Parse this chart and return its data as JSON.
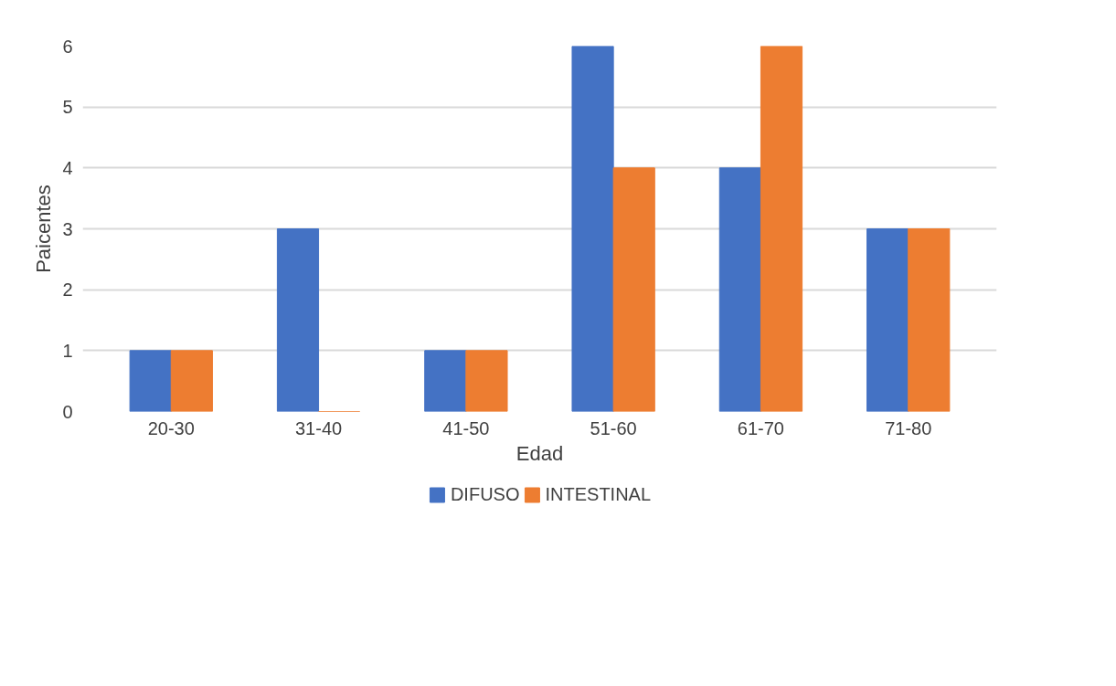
{
  "chart_data": {
    "type": "bar",
    "xlabel": "Edad",
    "ylabel": "Paicentes",
    "categories": [
      "20-30",
      "31-40",
      "41-50",
      "51-60",
      "61-70",
      "71-80"
    ],
    "series": [
      {
        "name": "DIFUSO",
        "color": "#4472c4",
        "values": [
          1,
          3,
          1,
          6,
          4,
          3
        ]
      },
      {
        "name": "INTESTINAL",
        "color": "#ed7d31",
        "values": [
          1,
          0,
          1,
          4,
          6,
          3
        ]
      }
    ],
    "ylim": [
      0,
      6
    ],
    "yticks": [
      0,
      1,
      2,
      3,
      4,
      5,
      6
    ],
    "grid": "y",
    "legend": "bottom"
  }
}
